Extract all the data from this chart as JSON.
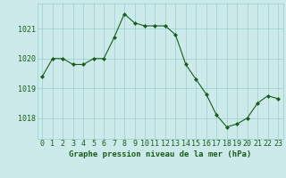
{
  "hours": [
    0,
    1,
    2,
    3,
    4,
    5,
    6,
    7,
    8,
    9,
    10,
    11,
    12,
    13,
    14,
    15,
    16,
    17,
    18,
    19,
    20,
    21,
    22,
    23
  ],
  "pressure": [
    1019.4,
    1020.0,
    1020.0,
    1019.8,
    1019.8,
    1020.0,
    1020.0,
    1020.7,
    1021.5,
    1021.2,
    1021.1,
    1021.1,
    1021.1,
    1020.8,
    1019.8,
    1019.3,
    1018.8,
    1018.1,
    1017.7,
    1017.8,
    1018.0,
    1018.5,
    1018.75,
    1018.65
  ],
  "ylim_min": 1017.3,
  "ylim_max": 1021.85,
  "yticks": [
    1018,
    1019,
    1020,
    1021
  ],
  "xlabel": "Graphe pression niveau de la mer (hPa)",
  "line_color": "#1a5c1a",
  "marker": "D",
  "markersize": 2.0,
  "bg_color": "#cceaea",
  "grid_color": "#99cccc",
  "tick_label_color": "#1a5c1a",
  "xlabel_fontsize": 6.5,
  "tick_fontsize": 6.0,
  "linewidth": 0.8
}
